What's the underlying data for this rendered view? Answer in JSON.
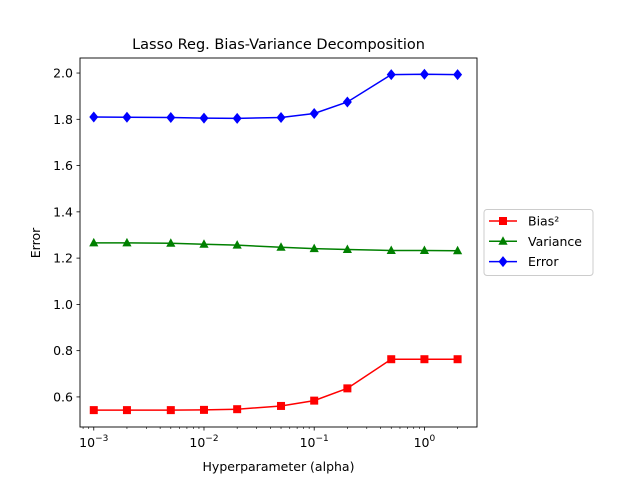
{
  "chart_data": {
    "type": "line",
    "title": "Lasso Reg. Bias-Variance Decomposition",
    "xlabel": "Hyperparameter (alpha)",
    "ylabel": "Error",
    "xscale": "log",
    "xlim": [
      0.00075,
      3.0
    ],
    "ylim": [
      0.47,
      2.065
    ],
    "y_ticks": [
      "0.6",
      "0.8",
      "1.0",
      "1.2",
      "1.4",
      "1.6",
      "1.8",
      "2.0"
    ],
    "x_ticks": [
      {
        "base": "10",
        "exp": "−3",
        "value": 0.001
      },
      {
        "base": "10",
        "exp": "−2",
        "value": 0.01
      },
      {
        "base": "10",
        "exp": "−1",
        "value": 0.1
      },
      {
        "base": "10",
        "exp": "0",
        "value": 1
      }
    ],
    "legend_position": "right, outside plot",
    "grid": false,
    "x": [
      0.001,
      0.002,
      0.005,
      0.01,
      0.02,
      0.05,
      0.1,
      0.2,
      0.5,
      1,
      2
    ],
    "series": [
      {
        "name": "Bias²",
        "color": "#ff0000",
        "marker": "square",
        "values": [
          0.543,
          0.543,
          0.543,
          0.544,
          0.547,
          0.561,
          0.584,
          0.637,
          0.763,
          0.763,
          0.763
        ]
      },
      {
        "name": "Variance",
        "color": "#008000",
        "marker": "triangle",
        "values": [
          1.266,
          1.266,
          1.264,
          1.26,
          1.256,
          1.247,
          1.241,
          1.237,
          1.233,
          1.233,
          1.232
        ]
      },
      {
        "name": "Error",
        "color": "#0000ff",
        "marker": "diamond",
        "values": [
          1.81,
          1.809,
          1.808,
          1.805,
          1.804,
          1.808,
          1.825,
          1.875,
          1.993,
          1.995,
          1.993
        ]
      }
    ]
  }
}
